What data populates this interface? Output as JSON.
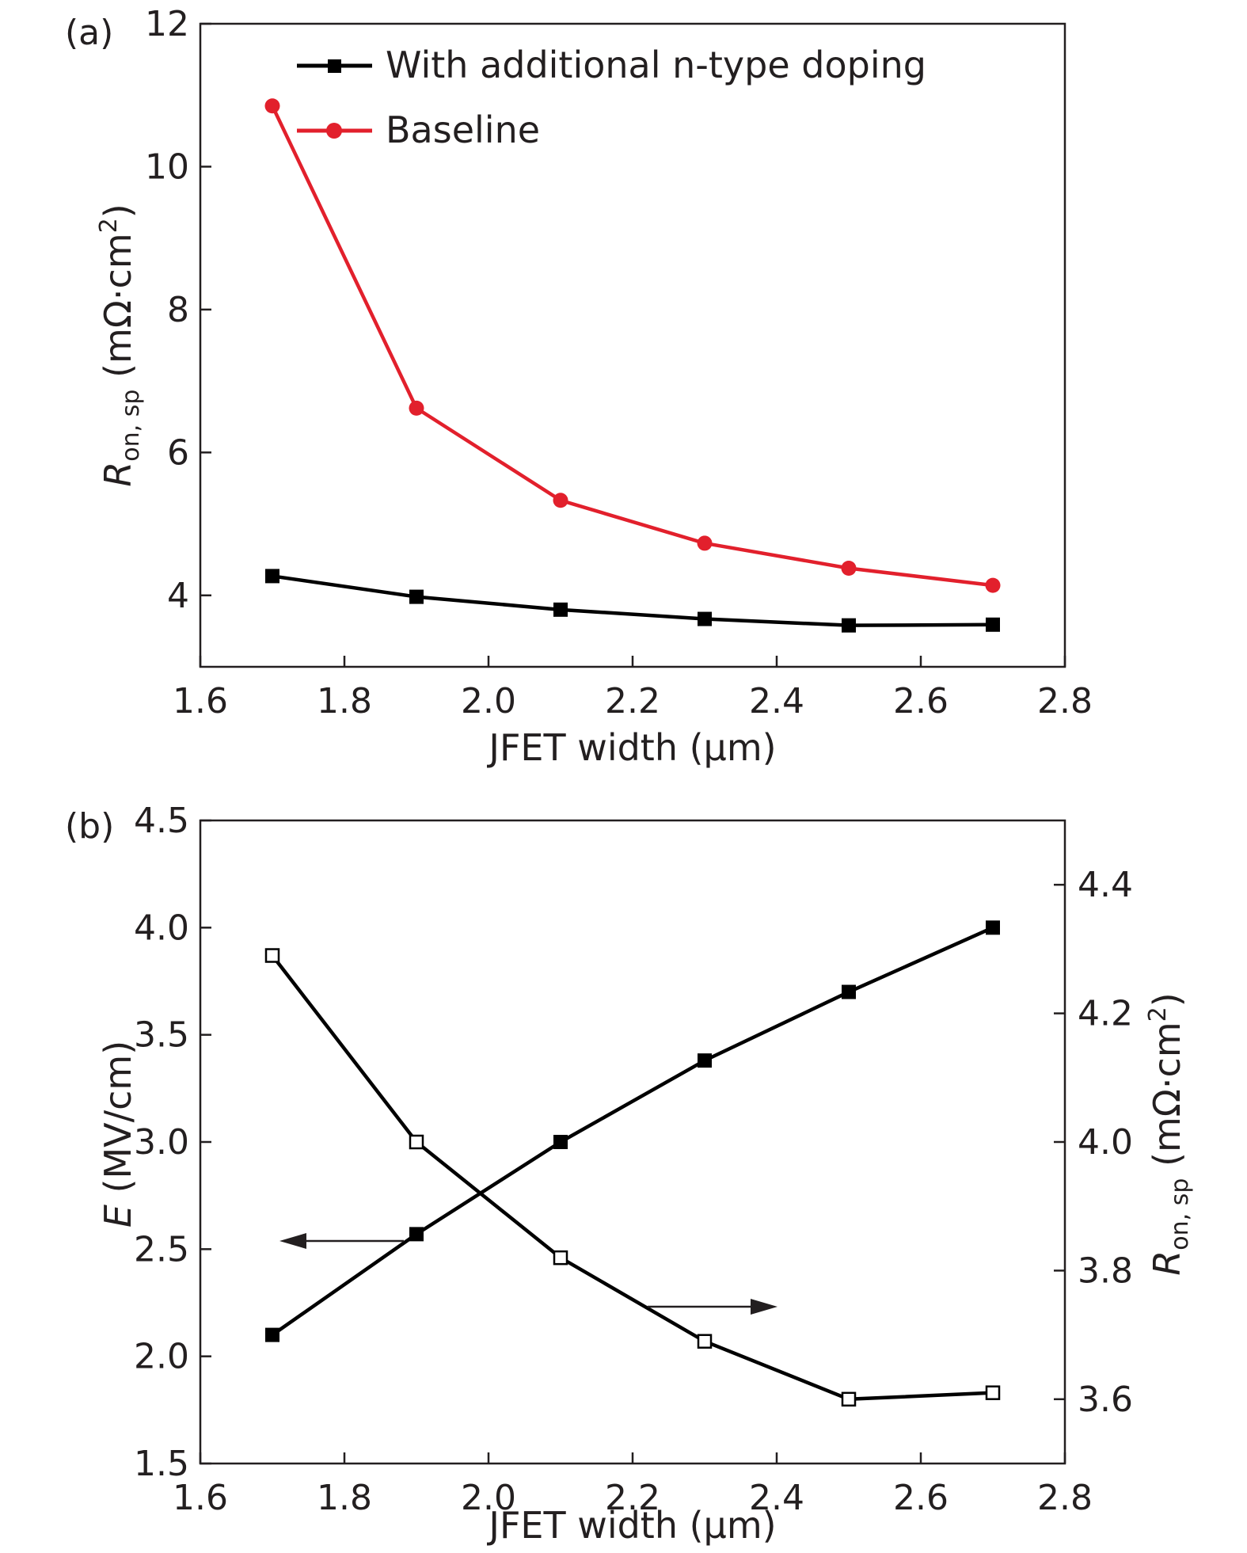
{
  "chart_data": [
    {
      "type": "line",
      "panel_label": "(a)",
      "xlabel": "JFET width (μm)",
      "ylabel": {
        "symbol": "R",
        "subscript": "on, sp",
        "unit": " (mΩ·cm",
        "sup": "2",
        "close": ")"
      },
      "xlim": [
        1.6,
        2.8
      ],
      "ylim": [
        3.0,
        12.0
      ],
      "x_ticks": [
        "1.6",
        "1.8",
        "2.0",
        "2.2",
        "2.4",
        "2.6",
        "2.8"
      ],
      "y_ticks": [
        "4",
        "6",
        "8",
        "10",
        "12"
      ],
      "y_tick_values": [
        4,
        6,
        8,
        10,
        12
      ],
      "legend_position": "top-right",
      "x": [
        1.7,
        1.9,
        2.1,
        2.3,
        2.5,
        2.7
      ],
      "series": [
        {
          "name": "With additional n-type doping",
          "color": "#000000",
          "marker": "square-filled",
          "values": [
            4.27,
            3.98,
            3.8,
            3.67,
            3.58,
            3.59
          ]
        },
        {
          "name": "Baseline",
          "color": "#e2202c",
          "marker": "circle-filled",
          "values": [
            10.85,
            6.62,
            5.33,
            4.73,
            4.38,
            4.14
          ]
        }
      ]
    },
    {
      "type": "line",
      "panel_label": "(b)",
      "xlabel": "JFET width (μm)",
      "ylabel_left": {
        "symbol": "E",
        "unit": " (MV/cm)"
      },
      "ylabel_right": {
        "symbol": "R",
        "subscript": "on, sp",
        "unit": " (mΩ·cm",
        "sup": "2",
        "close": ")"
      },
      "xlim": [
        1.6,
        2.8
      ],
      "ylim_left": [
        1.5,
        4.5
      ],
      "ylim_right": [
        3.5,
        4.5
      ],
      "x_ticks": [
        "1.6",
        "1.8",
        "2.0",
        "2.2",
        "2.4",
        "2.6",
        "2.8"
      ],
      "y_ticks_left": [
        "1.5",
        "2.0",
        "2.5",
        "3.0",
        "3.5",
        "4.0",
        "4.5"
      ],
      "y_ticks_right": [
        "3.6",
        "3.8",
        "4.0",
        "4.2",
        "4.4"
      ],
      "y_tick_values_right": [
        3.6,
        3.8,
        4.0,
        4.2,
        4.4
      ],
      "x": [
        1.7,
        1.9,
        2.1,
        2.3,
        2.5,
        2.7
      ],
      "series": [
        {
          "axis": "left",
          "color": "#000000",
          "marker": "square-filled",
          "values": [
            2.1,
            2.57,
            3.0,
            3.38,
            3.7,
            4.0
          ]
        },
        {
          "axis": "right",
          "color": "#000000",
          "marker": "square-open",
          "values": [
            4.29,
            4.0,
            3.82,
            3.69,
            3.6,
            3.61
          ]
        }
      ],
      "annotations": [
        {
          "type": "arrow",
          "direction": "left",
          "points_to": "left-axis",
          "at": {
            "x": 1.9,
            "y": 2.52
          }
        },
        {
          "type": "arrow",
          "direction": "right",
          "points_to": "right-axis",
          "at": {
            "x": 2.22,
            "y": 3.72
          }
        }
      ]
    }
  ]
}
